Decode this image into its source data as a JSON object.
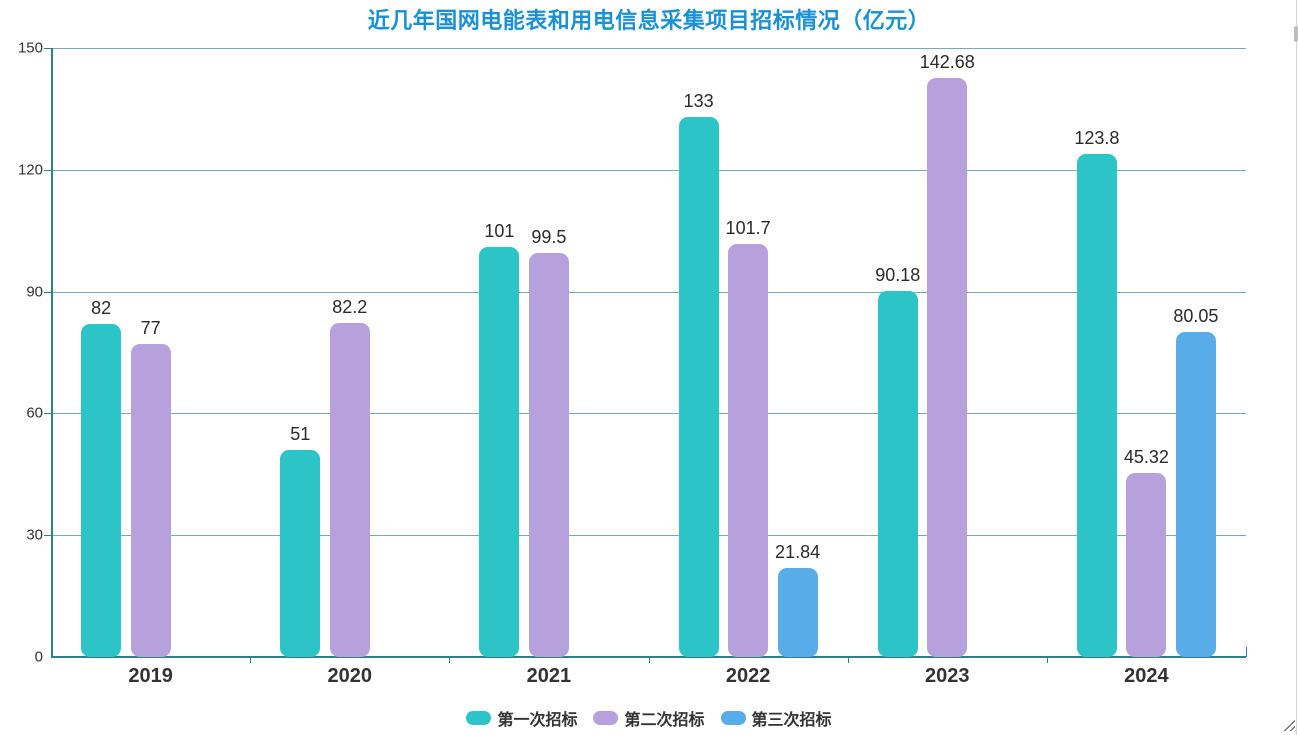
{
  "title": {
    "text": "近几年国网电能表和用电信息采集项目招标情况（亿元）",
    "color": "#1a90d5"
  },
  "chart_data": {
    "type": "bar",
    "categories": [
      "2019",
      "2020",
      "2021",
      "2022",
      "2023",
      "2024"
    ],
    "series": [
      {
        "name": "第一次招标",
        "color": "#2cc4c6",
        "values": [
          82,
          51,
          101,
          133,
          90.18,
          123.8
        ]
      },
      {
        "name": "第二次招标",
        "color": "#b7a1dd",
        "values": [
          77,
          82.2,
          99.5,
          101.7,
          142.68,
          45.32
        ]
      },
      {
        "name": "第三次招标",
        "color": "#58ade9",
        "values": [
          null,
          null,
          null,
          21.84,
          null,
          80.05
        ]
      }
    ],
    "title": "近几年国网电能表和用电信息采集项目招标情况（亿元）",
    "xlabel": "",
    "ylabel": "",
    "ylim": [
      0,
      150
    ],
    "yticks": [
      0,
      30,
      60,
      90,
      120,
      150
    ],
    "grid": true,
    "legend_position": "bottom",
    "colors": {
      "axis": "#2e7d91",
      "grid": "#78a9ba",
      "tick_label": "#333333",
      "value_label": "#2a2a2a"
    }
  }
}
